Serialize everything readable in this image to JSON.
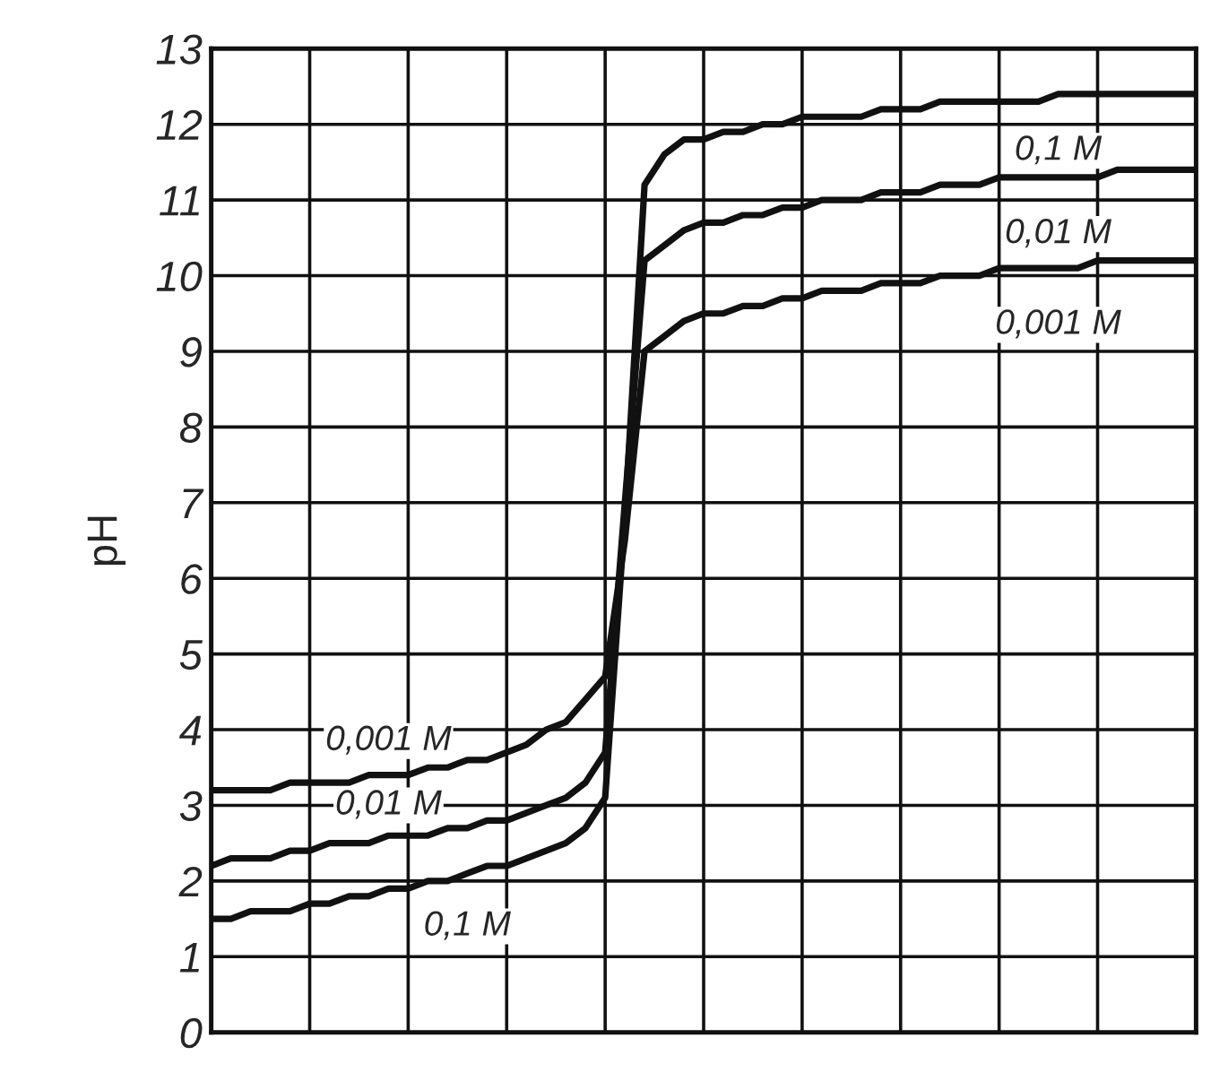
{
  "chart_data": {
    "type": "line",
    "ylabel": "pH",
    "categories": [
      null,
      null,
      null,
      null,
      null,
      null,
      null,
      null,
      null,
      null,
      null,
      null,
      null,
      null,
      null,
      null,
      null,
      null,
      null,
      null,
      null,
      null,
      null,
      null,
      null,
      null,
      null,
      null,
      null,
      null,
      null,
      null,
      null,
      null,
      null,
      null,
      null,
      null,
      null,
      null,
      null,
      null,
      null,
      null,
      null,
      null,
      null,
      null,
      null,
      null,
      null
    ],
    "series": [
      {
        "name": "0,1 M",
        "color": "#111111",
        "values": [
          1.5,
          1.5,
          1.6,
          1.6,
          1.6,
          1.7,
          1.7,
          1.8,
          1.8,
          1.9,
          1.9,
          2.0,
          2.0,
          2.1,
          2.2,
          2.2,
          2.3,
          2.4,
          2.5,
          2.7,
          3.1,
          6.8,
          11.2,
          11.6,
          11.8,
          11.8,
          11.9,
          11.9,
          12.0,
          12.0,
          12.1,
          12.1,
          12.1,
          12.1,
          12.2,
          12.2,
          12.2,
          12.3,
          12.3,
          12.3,
          12.3,
          12.3,
          12.3,
          12.4,
          12.4,
          12.4,
          12.4,
          12.4,
          12.4,
          12.4,
          12.4
        ]
      },
      {
        "name": "0,01 M",
        "color": "#111111",
        "values": [
          2.2,
          2.3,
          2.3,
          2.3,
          2.4,
          2.4,
          2.5,
          2.5,
          2.5,
          2.6,
          2.6,
          2.6,
          2.7,
          2.7,
          2.8,
          2.8,
          2.9,
          3.0,
          3.1,
          3.3,
          3.7,
          7.0,
          10.2,
          10.4,
          10.6,
          10.7,
          10.7,
          10.8,
          10.8,
          10.9,
          10.9,
          11.0,
          11.0,
          11.0,
          11.1,
          11.1,
          11.1,
          11.2,
          11.2,
          11.2,
          11.3,
          11.3,
          11.3,
          11.3,
          11.3,
          11.3,
          11.4,
          11.4,
          11.4,
          11.4,
          11.4
        ]
      },
      {
        "name": "0,001 M",
        "color": "#111111",
        "values": [
          3.2,
          3.2,
          3.2,
          3.2,
          3.3,
          3.3,
          3.3,
          3.3,
          3.4,
          3.4,
          3.4,
          3.5,
          3.5,
          3.6,
          3.6,
          3.7,
          3.8,
          4.0,
          4.1,
          4.4,
          4.7,
          6.5,
          9.0,
          9.2,
          9.4,
          9.5,
          9.5,
          9.6,
          9.6,
          9.7,
          9.7,
          9.8,
          9.8,
          9.8,
          9.9,
          9.9,
          9.9,
          10.0,
          10.0,
          10.0,
          10.1,
          10.1,
          10.1,
          10.1,
          10.1,
          10.2,
          10.2,
          10.2,
          10.2,
          10.2,
          10.2
        ]
      }
    ],
    "ylim": [
      0,
      13
    ],
    "yticks": [
      0,
      1,
      2,
      3,
      4,
      5,
      6,
      7,
      8,
      9,
      10,
      11,
      12,
      13
    ],
    "grid": true,
    "legend": false,
    "tick_labels": "y",
    "marker": "none",
    "line_style": "solid"
  }
}
